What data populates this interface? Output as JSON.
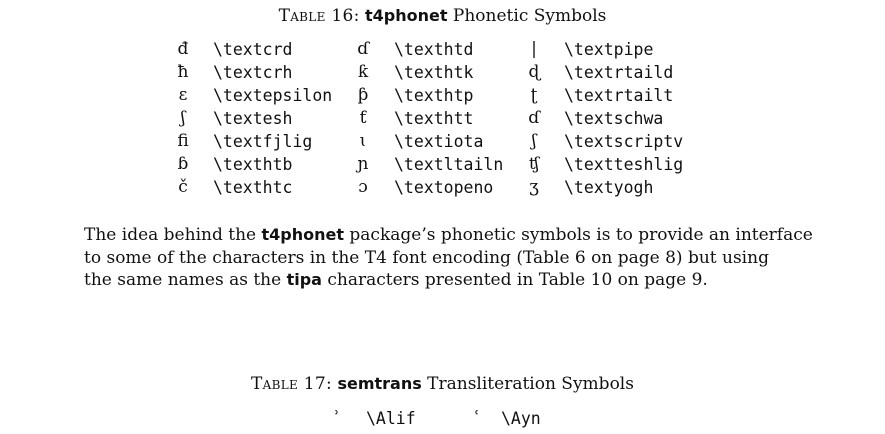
{
  "table16": {
    "label": "Table 16:",
    "package": "t4phonet",
    "title_rest": " Phonetic Symbols",
    "columns": [
      [
        {
          "symbol": "đ",
          "command": "\\textcrd"
        },
        {
          "symbol": "ħ",
          "command": "\\textcrh"
        },
        {
          "symbol": "ɛ",
          "command": "\\textepsilon"
        },
        {
          "symbol": "ʃ",
          "command": "\\textesh"
        },
        {
          "symbol": "ﬁ",
          "command": "\\textfjlig"
        },
        {
          "symbol": "ɓ",
          "command": "\\texthtb"
        },
        {
          "symbol": "č",
          "command": "\\texthtc"
        }
      ],
      [
        {
          "symbol": "ɗ",
          "command": "\\texthtd"
        },
        {
          "symbol": "ƙ",
          "command": "\\texthtk"
        },
        {
          "symbol": "ƥ",
          "command": "\\texthtp"
        },
        {
          "symbol": "ƭ",
          "command": "\\texthtt"
        },
        {
          "symbol": "ɩ",
          "command": "\\textiota"
        },
        {
          "symbol": "ɲ",
          "command": "\\textltailn"
        },
        {
          "symbol": "ɔ",
          "command": "\\textopeno"
        }
      ],
      [
        {
          "symbol": "|",
          "command": "\\textpipe"
        },
        {
          "symbol": "ɖ",
          "command": "\\textrtaild"
        },
        {
          "symbol": "ʈ",
          "command": "\\textrtailt"
        },
        {
          "symbol": "ɗ",
          "command": "\\textschwa"
        },
        {
          "symbol": "ʃ",
          "command": "\\textscriptv"
        },
        {
          "symbol": "ʧ",
          "command": "\\textteshlig"
        },
        {
          "symbol": "ʒ",
          "command": "\\textyogh"
        }
      ]
    ]
  },
  "paragraph": {
    "line1_a": "The idea behind the ",
    "line1_pkg": "t4phonet",
    "line1_b": " package’s phonetic symbols is to provide an interface",
    "line2": "to some of the characters in the T4 font encoding (Table 6 on page 8) but using",
    "line3_a": "the same names as the ",
    "line3_pkg": "tipa",
    "line3_b": " characters presented in Table 10 on page 9."
  },
  "table17": {
    "label": "Table 17:",
    "package": "semtrans",
    "title_rest": " Transliteration Symbols",
    "entries": [
      {
        "symbol": "ʾ",
        "command": "\\Alif"
      },
      {
        "symbol": "ʿ",
        "command": "\\Ayn"
      }
    ]
  }
}
